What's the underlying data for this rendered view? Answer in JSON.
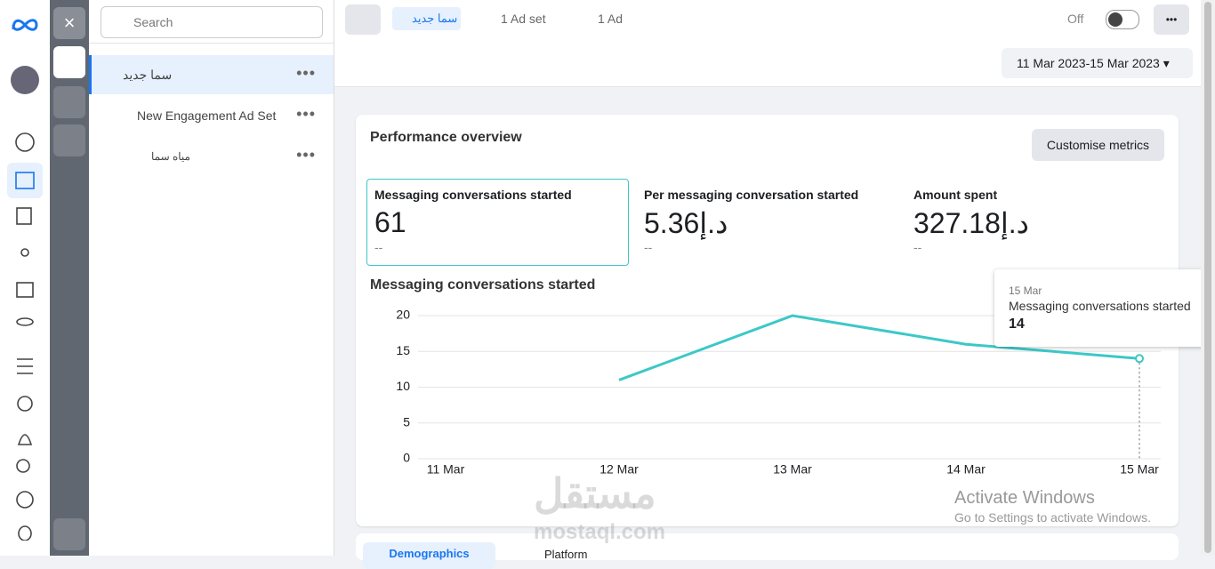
{
  "top_bar": {
    "breadcrumb": [
      "سما جديد",
      "1 Ad set",
      "1 Ad"
    ],
    "toggle_label": "Off"
  },
  "date_range": "11 Mar 2023-15 Mar 2023",
  "sidebar": {
    "search_placeholder": "Search",
    "items": [
      "سما جديد",
      "New Engagement Ad Set",
      "مياه سما"
    ]
  },
  "overview": {
    "title": "Performance overview",
    "button": "Customise metrics",
    "metrics": [
      {
        "label": "Messaging conversations started",
        "value": "61",
        "comparison": "--"
      },
      {
        "label": "Per messaging conversation started",
        "value": "5.36د.إ",
        "comparison": "--"
      },
      {
        "label": "Amount spent",
        "value": "327.18د.إ",
        "comparison": "--"
      }
    ]
  },
  "chart": {
    "type": "line",
    "title": "Messaging conversations started",
    "categories": [
      "11 Mar",
      "12 Mar",
      "13 Mar",
      "14 Mar",
      "15 Mar"
    ],
    "values": [
      null,
      11,
      20,
      16,
      14
    ],
    "color": "#3cc8c8",
    "ylim": [
      0,
      20
    ],
    "yticks": [
      0,
      5,
      10,
      15,
      20
    ],
    "grid": true
  },
  "tooltip": {
    "date": "15 Mar",
    "label": "Messaging conversations started",
    "value": 14
  },
  "tabs": [
    "Demographics",
    "Platform"
  ],
  "watermark": {
    "title": "Activate Windows",
    "subtitle": "Go to Settings to activate Windows.",
    "brand": "مستقل",
    "brand_url": "mostaql.com"
  }
}
